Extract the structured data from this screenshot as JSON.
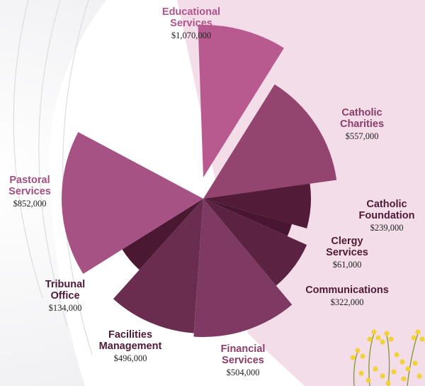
{
  "chart_data": {
    "type": "pie",
    "variant": "polar-area",
    "slices": [
      {
        "label": [
          "Educational",
          "Services"
        ],
        "value_text": "$1,070,000",
        "value": 1070000,
        "color": "#b85a90",
        "label_color": "#b05589"
      },
      {
        "label": [
          "Catholic",
          "Charities"
        ],
        "value_text": "$557,000",
        "value": 557000,
        "color": "#93456f",
        "label_color": "#8b3d68"
      },
      {
        "label": [
          "Catholic",
          "Foundation"
        ],
        "value_text": "$239,000",
        "value": 239000,
        "color": "#521b38",
        "label_color": "#4e1a35"
      },
      {
        "label": [
          "Clergy",
          "Services"
        ],
        "value_text": "$61,000",
        "value": 61000,
        "color": "#481630",
        "label_color": "#4e1a35"
      },
      {
        "label": [
          "Communications"
        ],
        "value_text": "$322,000",
        "value": 322000,
        "color": "#5c2242",
        "label_color": "#4e1a35"
      },
      {
        "label": [
          "Financial",
          "Services"
        ],
        "value_text": "$504,000",
        "value": 504000,
        "color": "#7e3a63",
        "label_color": "#8b3d68"
      },
      {
        "label": [
          "Facilities",
          "Management"
        ],
        "value_text": "$496,000",
        "value": 496000,
        "color": "#6a2c4f",
        "label_color": "#4e1a35"
      },
      {
        "label": [
          "Tribunal",
          "Office"
        ],
        "value_text": "$134,000",
        "value": 134000,
        "color": "#4a1831",
        "label_color": "#4e1a35"
      },
      {
        "label": [
          "Pastoral",
          "Services"
        ],
        "value_text": "$852,000",
        "value": 852000,
        "color": "#a65284",
        "label_color": "#a24f80"
      }
    ],
    "colors": {
      "background_band": "#f3dde8",
      "accent_flowers": "#f2d23a"
    }
  }
}
